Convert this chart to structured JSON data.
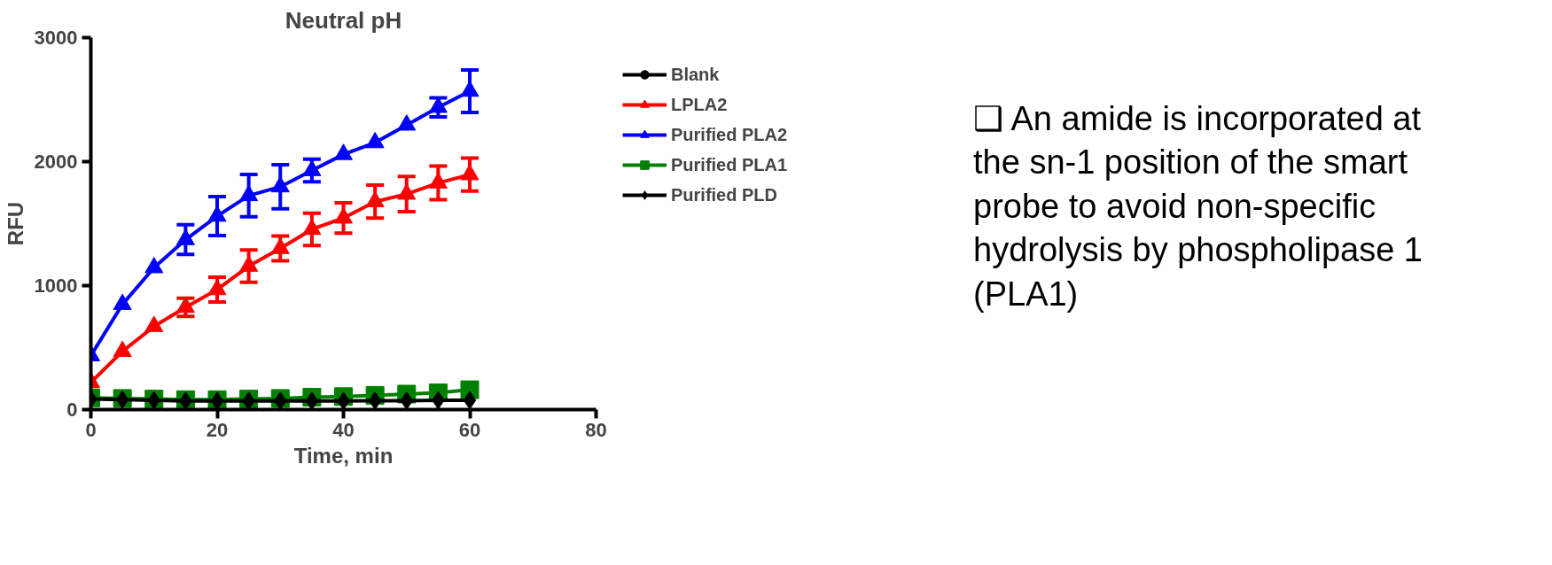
{
  "chart_data": {
    "type": "line",
    "title": "Neutral pH",
    "xlabel": "Time, min",
    "ylabel": "RFU",
    "x": [
      0,
      5,
      10,
      15,
      20,
      25,
      30,
      35,
      40,
      45,
      50,
      55,
      60
    ],
    "xlim": [
      0,
      80
    ],
    "xticks": [
      0,
      20,
      40,
      60,
      80
    ],
    "ylim": [
      0,
      3000
    ],
    "yticks": [
      0,
      1000,
      2000,
      3000
    ],
    "grid": false,
    "legend": "right",
    "series": [
      {
        "name": "Blank",
        "color": "#000000",
        "marker": "circle",
        "values": [
          null,
          null,
          null,
          null,
          null,
          null,
          null,
          null,
          null,
          null,
          null,
          null,
          null
        ]
      },
      {
        "name": "LPLA2",
        "color": "#ff0000",
        "marker": "triangle",
        "values": [
          220,
          470,
          671,
          825,
          968,
          1157,
          1300,
          1454,
          1545,
          1677,
          1738,
          1828,
          1895
        ],
        "errors": [
          null,
          null,
          null,
          74,
          100,
          130,
          100,
          130,
          122,
          133,
          142,
          136,
          133
        ]
      },
      {
        "name": "Purified PLA2",
        "color": "#0000ff",
        "marker": "triangle",
        "values": [
          434,
          849,
          1145,
          1371,
          1560,
          1726,
          1797,
          1928,
          2058,
          2153,
          2295,
          2438,
          2568
        ],
        "errors": [
          null,
          null,
          null,
          120,
          157,
          170,
          178,
          91,
          null,
          null,
          null,
          77,
          172
        ]
      },
      {
        "name": "Purified PLA1",
        "color": "#008000",
        "marker": "square",
        "values": [
          95,
          90,
          85,
          80,
          80,
          85,
          90,
          100,
          105,
          115,
          125,
          135,
          160
        ]
      },
      {
        "name": "Purified PLD",
        "color": "#000000",
        "marker": "diamond",
        "values": [
          85,
          80,
          75,
          70,
          70,
          70,
          70,
          70,
          70,
          72,
          72,
          75,
          75
        ]
      }
    ],
    "annotations": [
      "❑ An amide is incorporated at the sn-1 position of the smart probe to avoid non-specific hydrolysis by phospholipase 1 (PLA1)"
    ]
  }
}
